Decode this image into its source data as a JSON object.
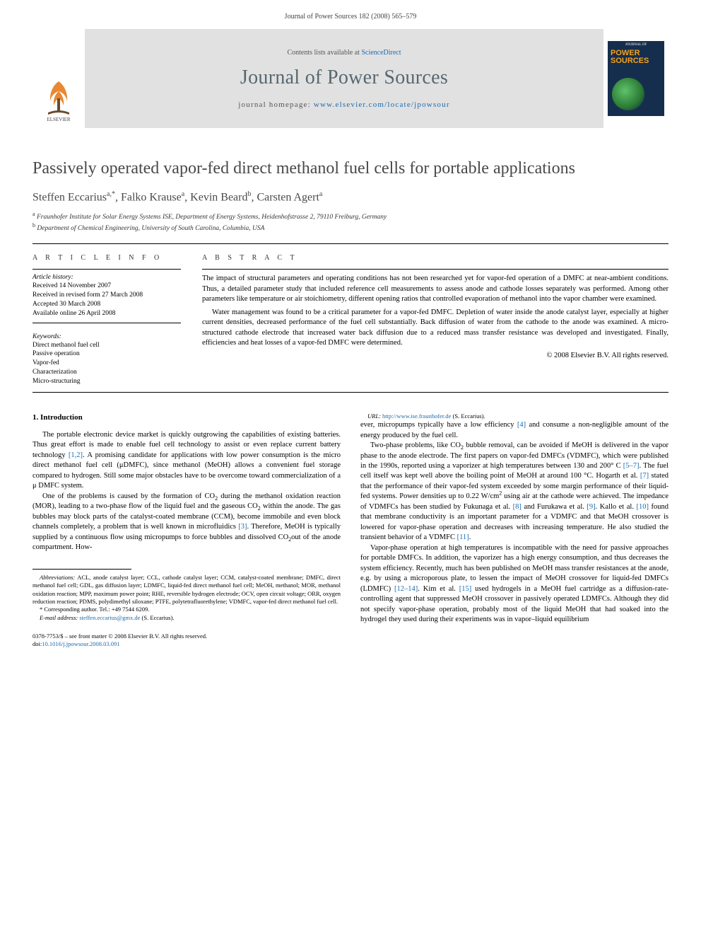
{
  "header": {
    "citation": "Journal of Power Sources 182 (2008) 565–579"
  },
  "banner": {
    "contents_prefix": "Contents lists available at ",
    "contents_link": "ScienceDirect",
    "journal": "Journal of Power Sources",
    "homepage_prefix": "journal homepage: ",
    "homepage_url": "www.elsevier.com/locate/jpowsour",
    "cover": {
      "line1": "JOURNAL OF",
      "line2": "POWER SOURCES"
    }
  },
  "title": "Passively operated vapor-fed direct methanol fuel cells for portable applications",
  "authors_html": "Steffen Eccarius<sup>a,*</sup>, Falko Krause<sup>a</sup>, Kevin Beard<sup>b</sup>, Carsten Agert<sup>a</sup>",
  "affiliations": [
    "a  Fraunhofer Institute for Solar Energy Systems ISE, Department of Energy Systems, Heidenhofstrasse 2, 79110 Freiburg, Germany",
    "b  Department of Chemical Engineering, University of South Carolina, Columbia, USA"
  ],
  "article_info": {
    "label": "A R T I C L E   I N F O",
    "history_label": "Article history:",
    "history": [
      "Received 14 November 2007",
      "Received in revised form 27 March 2008",
      "Accepted 30 March 2008",
      "Available online 26 April 2008"
    ],
    "keywords_label": "Keywords:",
    "keywords": [
      "Direct methanol fuel cell",
      "Passive operation",
      "Vapor-fed",
      "Characterization",
      "Micro-structuring"
    ]
  },
  "abstract": {
    "label": "A B S T R A C T",
    "paragraphs": [
      "The impact of structural parameters and operating conditions has not been researched yet for vapor-fed operation of a DMFC at near-ambient conditions. Thus, a detailed parameter study that included reference cell measurements to assess anode and cathode losses separately was performed. Among other parameters like temperature or air stoichiometry, different opening ratios that controlled evaporation of methanol into the vapor chamber were examined.",
      "Water management was found to be a critical parameter for a vapor-fed DMFC. Depletion of water inside the anode catalyst layer, especially at higher current densities, decreased performance of the fuel cell substantially. Back diffusion of water from the cathode to the anode was examined. A micro-structured cathode electrode that increased water back diffusion due to a reduced mass transfer resistance was developed and investigated. Finally, efficiencies and heat losses of a vapor-fed DMFC were determined."
    ],
    "copyright": "© 2008 Elsevier B.V. All rights reserved."
  },
  "intro": {
    "heading": "1.  Introduction",
    "paragraphs": [
      "The portable electronic device market is quickly outgrowing the capabilities of existing batteries. Thus great effort is made to enable fuel cell technology to assist or even replace current battery technology <span class=\"ref\">[1,2]</span>. A promising candidate for applications with low power consumption is the micro direct methanol fuel cell (μDMFC), since methanol (MeOH) allows a convenient fuel storage compared to hydrogen. Still some major obstacles have to be overcome toward commercialization of a μ DMFC system.",
      "One of the problems is caused by the formation of CO<sub>2</sub> during the methanol oxidation reaction (MOR), leading to a two-phase flow of the liquid fuel and the gaseous CO<sub>2</sub> within the anode. The gas bubbles may block parts of the catalyst-coated membrane (CCM), become immobile and even block channels completely, a problem that is well known in microfluidics <span class=\"ref\">[3]</span>. Therefore, MeOH is typically supplied by a continuous flow using micropumps to force bubbles and dissolved CO<sub>2</sub>out of the anode compartment. How-",
      "ever, micropumps typically have a low efficiency <span class=\"ref\">[4]</span> and consume a non-negligible amount of the energy produced by the fuel cell.",
      "Two-phase problems, like CO<sub>2</sub> bubble removal, can be avoided if MeOH is delivered in the vapor phase to the anode electrode. The first papers on vapor-fed DMFCs (VDMFC), which were published in the 1990s, reported using a vaporizer at high temperatures between 130 and 200° C <span class=\"ref\">[5–7]</span>. The fuel cell itself was kept well above the boiling point of MeOH at around 100 °C. Hogarth et al. <span class=\"ref\">[7]</span> stated that the performance of their vapor-fed system exceeded by some margin performance of their liquid-fed systems. Power densities up to 0.22 W/cm<sup>2</sup> using air at the cathode were achieved. The impedance of VDMFCs has been studied by Fukunaga et al. <span class=\"ref\">[8]</span> and Furukawa et al. <span class=\"ref\">[9]</span>. Kallo et al. <span class=\"ref\">[10]</span> found that membrane conductivity is an important parameter for a VDMFC and that MeOH crossover is lowered for vapor-phase operation and decreases with increasing temperature. He also studied the transient behavior of a VDMFC <span class=\"ref\">[11]</span>.",
      "Vapor-phase operation at high temperatures is incompatible with the need for passive approaches for portable DMFCs. In addition, the vaporizer has a high energy consumption, and thus decreases the system efficiency. Recently, much has been published on MeOH mass transfer resistances at the anode, e.g. by using a microporous plate, to lessen the impact of MeOH crossover for liquid-fed DMFCs (LDMFC) <span class=\"ref\">[12–14]</span>. Kim et al. <span class=\"ref\">[15]</span> used hydrogels in a MeOH fuel cartridge as a diffusion-rate-controlling agent that suppressed MeOH crossover in passively operated LDMFCs. Although they did not specify vapor-phase operation, probably most of the liquid MeOH that had soaked into the hydrogel they used during their experiments was in vapor–liquid equilibrium"
    ]
  },
  "footnotes": {
    "abbrev_label": "Abbreviations:",
    "abbrev": " ACL, anode catalyst layer; CCL, cathode catalyst layer; CCM, catalyst-coated membrane; DMFC, direct methanol fuel cell; GDL, gas diffusion layer; LDMFC, liquid-fed direct methanol fuel cell; MeOH, methanol; MOR, methanol oxidation reaction; MPP, maximum power point; RHE, reversible hydrogen electrode; OCV, open circuit voltage; ORR, oxygen reduction reaction; PDMS, polydimethyl siloxane; PTFE, polytetrafluorethylene; VDMFC, vapor-fed direct methanol fuel cell.",
    "corr_label": "* Corresponding author. Tel.: +49 7544 6209.",
    "email_label": "E-mail address:",
    "email": "steffen.eccarius@gmx.de",
    "email_suffix": " (S. Eccarius).",
    "url_label": "URL:",
    "url": "http://www.ise.fraunhofer.de",
    "url_suffix": " (S. Eccarius)."
  },
  "footer": {
    "line1_prefix": "0378-7753/$ – see front matter © 2008 Elsevier B.V. All rights reserved.",
    "doi_prefix": "doi:",
    "doi": "10.1016/j.jpowsour.2008.03.091"
  },
  "colors": {
    "link": "#1a6baf",
    "banner_bg": "#e1e1e1",
    "journal_name": "#576770",
    "cover_bg": "#162e4d",
    "cover_accent": "#f5a31a"
  }
}
